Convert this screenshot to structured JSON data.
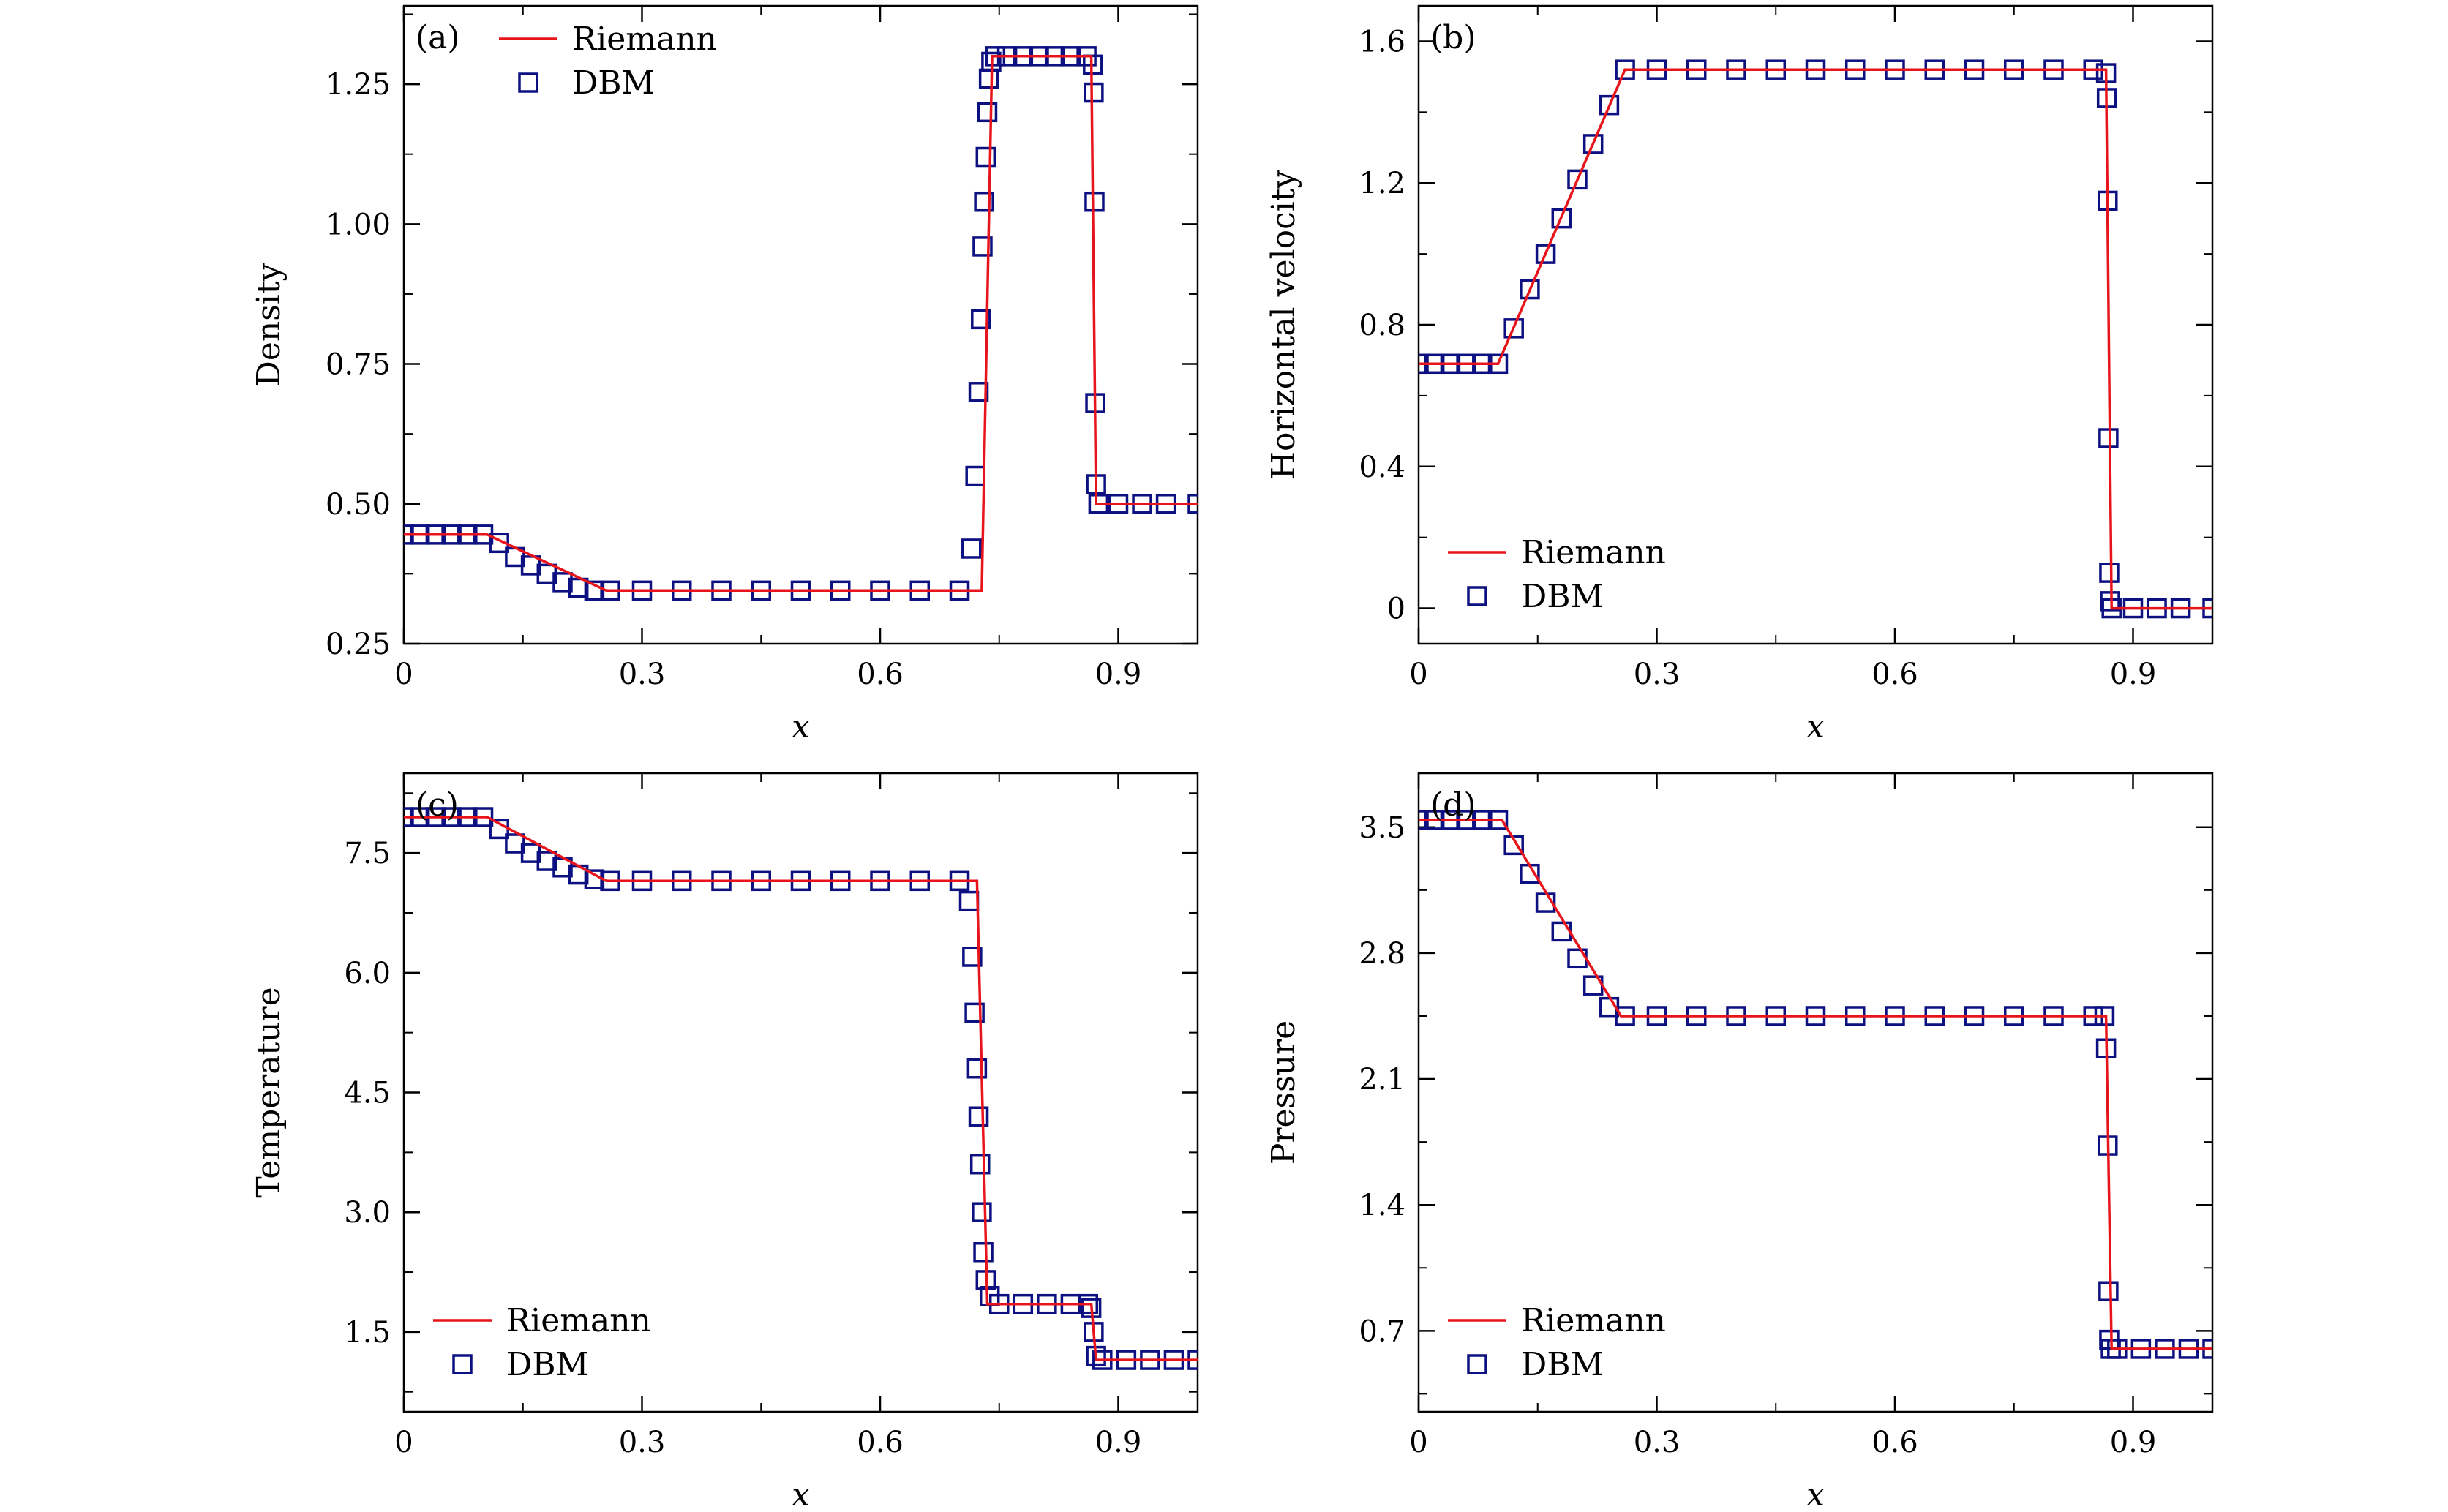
{
  "figure": {
    "series_colors": {
      "riemann": "#e8141b",
      "dbm": "#0d1080"
    }
  },
  "chart_data": [
    {
      "id": "a",
      "type": "line",
      "panel_label": "(a)",
      "xlabel": "x",
      "ylabel": "Density",
      "xlim": [
        0,
        1.0
      ],
      "ylim": [
        0.25,
        1.39
      ],
      "xticks": [
        0,
        0.3,
        0.6,
        0.9
      ],
      "xtick_labels": [
        "0",
        "0.3",
        "0.6",
        "0.9"
      ],
      "yticks": [
        0.25,
        0.5,
        0.75,
        1.0,
        1.25
      ],
      "ytick_labels": [
        "0.25",
        "0.50",
        "0.75",
        "1.00",
        "1.25"
      ],
      "legend": {
        "position": "top-left",
        "entries": [
          "Riemann",
          "DBM"
        ]
      },
      "series": [
        {
          "name": "Riemann",
          "kind": "line",
          "x": [
            0,
            0.105,
            0.255,
            0.728,
            0.741,
            0.866,
            0.872,
            1.0
          ],
          "y": [
            0.445,
            0.445,
            0.345,
            0.345,
            1.3,
            1.3,
            0.5,
            0.5
          ]
        },
        {
          "name": "DBM",
          "kind": "markers",
          "x": [
            0,
            0.02,
            0.04,
            0.06,
            0.08,
            0.1,
            0.12,
            0.14,
            0.16,
            0.18,
            0.2,
            0.22,
            0.24,
            0.26,
            0.3,
            0.35,
            0.4,
            0.45,
            0.5,
            0.55,
            0.6,
            0.65,
            0.7,
            0.715,
            0.72,
            0.724,
            0.727,
            0.729,
            0.731,
            0.733,
            0.735,
            0.737,
            0.74,
            0.745,
            0.76,
            0.78,
            0.8,
            0.82,
            0.84,
            0.86,
            0.868,
            0.869,
            0.87,
            0.871,
            0.872,
            0.875,
            0.9,
            0.93,
            0.96,
            1.0
          ],
          "y": [
            0.445,
            0.445,
            0.445,
            0.445,
            0.445,
            0.445,
            0.43,
            0.405,
            0.39,
            0.375,
            0.36,
            0.35,
            0.345,
            0.345,
            0.345,
            0.345,
            0.345,
            0.345,
            0.345,
            0.345,
            0.345,
            0.345,
            0.345,
            0.42,
            0.55,
            0.7,
            0.83,
            0.96,
            1.04,
            1.12,
            1.2,
            1.26,
            1.29,
            1.3,
            1.3,
            1.3,
            1.3,
            1.3,
            1.3,
            1.3,
            1.285,
            1.235,
            1.04,
            0.68,
            0.535,
            0.5,
            0.5,
            0.5,
            0.5,
            0.5
          ]
        }
      ]
    },
    {
      "id": "b",
      "type": "line",
      "panel_label": "(b)",
      "xlabel": "x",
      "ylabel": "Horizontal  velocity",
      "xlim": [
        0,
        1.0
      ],
      "ylim": [
        -0.1,
        1.7
      ],
      "xticks": [
        0,
        0.3,
        0.6,
        0.9
      ],
      "xtick_labels": [
        "0",
        "0.3",
        "0.6",
        "0.9"
      ],
      "yticks": [
        0,
        0.4,
        0.8,
        1.2,
        1.6
      ],
      "ytick_labels": [
        "0",
        "0.4",
        "0.8",
        "1.2",
        "1.6"
      ],
      "legend": {
        "position": "bottom-left",
        "entries": [
          "Riemann",
          "DBM"
        ]
      },
      "series": [
        {
          "name": "Riemann",
          "kind": "line",
          "x": [
            0,
            0.1,
            0.26,
            0.866,
            0.873,
            1.0
          ],
          "y": [
            0.69,
            0.69,
            1.52,
            1.52,
            0.0,
            0.0
          ]
        },
        {
          "name": "DBM",
          "kind": "markers",
          "x": [
            0,
            0.02,
            0.04,
            0.06,
            0.08,
            0.1,
            0.12,
            0.14,
            0.16,
            0.18,
            0.2,
            0.22,
            0.24,
            0.26,
            0.3,
            0.35,
            0.4,
            0.45,
            0.5,
            0.55,
            0.6,
            0.65,
            0.7,
            0.75,
            0.8,
            0.85,
            0.866,
            0.867,
            0.868,
            0.869,
            0.87,
            0.871,
            0.873,
            0.9,
            0.93,
            0.96,
            1.0
          ],
          "y": [
            0.69,
            0.69,
            0.69,
            0.69,
            0.69,
            0.69,
            0.79,
            0.9,
            1.0,
            1.1,
            1.21,
            1.31,
            1.42,
            1.52,
            1.52,
            1.52,
            1.52,
            1.52,
            1.52,
            1.52,
            1.52,
            1.52,
            1.52,
            1.52,
            1.52,
            1.52,
            1.51,
            1.44,
            1.15,
            0.48,
            0.1,
            0.02,
            0.0,
            0.0,
            0.0,
            0.0,
            0.0
          ]
        }
      ]
    },
    {
      "id": "c",
      "type": "line",
      "panel_label": "(c)",
      "xlabel": "x",
      "ylabel": "Temperature",
      "xlim": [
        0,
        1.0
      ],
      "ylim": [
        0.5,
        8.5
      ],
      "xticks": [
        0,
        0.3,
        0.6,
        0.9
      ],
      "xtick_labels": [
        "0",
        "0.3",
        "0.6",
        "0.9"
      ],
      "yticks": [
        1.5,
        3.0,
        4.5,
        6.0,
        7.5
      ],
      "ytick_labels": [
        "1.5",
        "3.0",
        "4.5",
        "6.0",
        "7.5"
      ],
      "legend": {
        "position": "bottom-left",
        "entries": [
          "Riemann",
          "DBM"
        ]
      },
      "series": [
        {
          "name": "Riemann",
          "kind": "line",
          "x": [
            0,
            0.105,
            0.255,
            0.722,
            0.735,
            0.866,
            0.872,
            1.0
          ],
          "y": [
            7.95,
            7.95,
            7.15,
            7.15,
            1.85,
            1.85,
            1.15,
            1.15
          ]
        },
        {
          "name": "DBM",
          "kind": "markers",
          "x": [
            0,
            0.02,
            0.04,
            0.06,
            0.08,
            0.1,
            0.12,
            0.14,
            0.16,
            0.18,
            0.2,
            0.22,
            0.24,
            0.26,
            0.3,
            0.35,
            0.4,
            0.45,
            0.5,
            0.55,
            0.6,
            0.65,
            0.7,
            0.712,
            0.716,
            0.719,
            0.722,
            0.724,
            0.726,
            0.728,
            0.73,
            0.733,
            0.738,
            0.75,
            0.78,
            0.81,
            0.84,
            0.862,
            0.866,
            0.869,
            0.872,
            0.88,
            0.91,
            0.94,
            0.97,
            1.0
          ],
          "y": [
            7.95,
            7.95,
            7.95,
            7.95,
            7.95,
            7.95,
            7.8,
            7.62,
            7.5,
            7.4,
            7.32,
            7.23,
            7.17,
            7.15,
            7.15,
            7.15,
            7.15,
            7.15,
            7.15,
            7.15,
            7.15,
            7.15,
            7.15,
            6.9,
            6.2,
            5.5,
            4.8,
            4.2,
            3.6,
            3.0,
            2.5,
            2.15,
            1.95,
            1.85,
            1.85,
            1.85,
            1.85,
            1.85,
            1.8,
            1.5,
            1.2,
            1.15,
            1.15,
            1.15,
            1.15,
            1.15
          ]
        }
      ]
    },
    {
      "id": "d",
      "type": "line",
      "panel_label": "(d)",
      "xlabel": "x",
      "ylabel": "Pressure",
      "xlim": [
        0,
        1.0
      ],
      "ylim": [
        0.25,
        3.8
      ],
      "xticks": [
        0,
        0.3,
        0.6,
        0.9
      ],
      "xtick_labels": [
        "0",
        "0.3",
        "0.6",
        "0.9"
      ],
      "yticks": [
        0.7,
        1.4,
        2.1,
        2.8,
        3.5
      ],
      "ytick_labels": [
        "0.7",
        "1.4",
        "2.1",
        "2.8",
        "3.5"
      ],
      "legend": {
        "position": "bottom-left",
        "entries": [
          "Riemann",
          "DBM"
        ]
      },
      "series": [
        {
          "name": "Riemann",
          "kind": "line",
          "x": [
            0,
            0.105,
            0.255,
            0.866,
            0.873,
            1.0
          ],
          "y": [
            3.54,
            3.54,
            2.45,
            2.45,
            0.6,
            0.6
          ]
        },
        {
          "name": "DBM",
          "kind": "markers",
          "x": [
            0,
            0.02,
            0.04,
            0.06,
            0.08,
            0.1,
            0.12,
            0.14,
            0.16,
            0.18,
            0.2,
            0.22,
            0.24,
            0.26,
            0.3,
            0.35,
            0.4,
            0.45,
            0.5,
            0.55,
            0.6,
            0.65,
            0.7,
            0.75,
            0.8,
            0.85,
            0.864,
            0.866,
            0.868,
            0.869,
            0.87,
            0.872,
            0.88,
            0.91,
            0.94,
            0.97,
            1.0
          ],
          "y": [
            3.54,
            3.54,
            3.54,
            3.54,
            3.54,
            3.54,
            3.4,
            3.24,
            3.08,
            2.92,
            2.77,
            2.62,
            2.5,
            2.45,
            2.45,
            2.45,
            2.45,
            2.45,
            2.45,
            2.45,
            2.45,
            2.45,
            2.45,
            2.45,
            2.45,
            2.45,
            2.45,
            2.27,
            1.73,
            0.92,
            0.65,
            0.6,
            0.6,
            0.6,
            0.6,
            0.6,
            0.6
          ]
        }
      ]
    }
  ]
}
